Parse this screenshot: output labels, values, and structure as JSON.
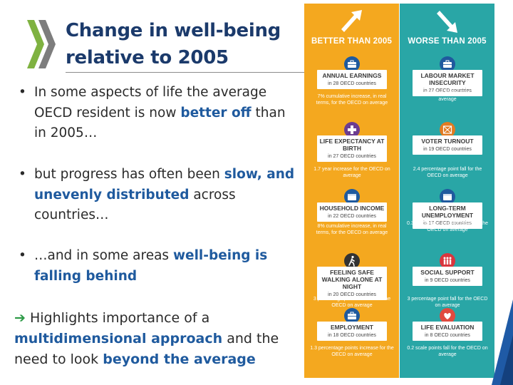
{
  "title": {
    "line1": "Change in well-being",
    "line2": "relative to 2005"
  },
  "bullets": [
    {
      "dot": "•",
      "pre": "In some aspects of life the average OECD resident is now ",
      "hl": "better off",
      "post": " than in 2005…"
    },
    {
      "dot": "•",
      "pre": "but progress has often been ",
      "hl": "slow, and unevenly distributed",
      "post": " across countries…"
    },
    {
      "dot": "•",
      "pre": "…and in some areas ",
      "hl": "well-being is falling behind",
      "post": ""
    }
  ],
  "conclusion": {
    "arrow": "➔",
    "t1": " Highlights importance of a ",
    "h1": "multidimensional approach",
    "t2": " and the need to look ",
    "h2": "beyond the average"
  },
  "infographic": {
    "better": {
      "header": "BETTER THAN 2005",
      "color": "#f4a81f",
      "items": [
        {
          "name": "ANNUAL EARNINGS",
          "countries": "in 28 OECD countries",
          "note": "7% cumulative increase, in real terms, for the OECD on average",
          "icon": "briefcase-icon"
        },
        {
          "name": "LIFE EXPECTANCY AT BIRTH",
          "countries": "in 27 OECD countries",
          "note": "1.7 year increase for the OECD on average",
          "icon": "medical-cross-icon"
        },
        {
          "name": "HOUSEHOLD INCOME",
          "countries": "in 22 OECD countries",
          "note": "8% cumulative increase, in real terms, for the OECD on average",
          "icon": "wallet-icon"
        },
        {
          "name": "FEELING SAFE WALKING ALONE AT NIGHT",
          "countries": "in 20 OECD countries",
          "note": "3 percentage point increase for the OECD on average",
          "icon": "walking-person-icon"
        },
        {
          "name": "EMPLOYMENT",
          "countries": "in 18 OECD countries",
          "note": "1.3 percentage points increase for the OECD on average",
          "icon": "briefcase-icon"
        }
      ]
    },
    "worse": {
      "header": "WORSE THAN 2005",
      "color": "#29a6a6",
      "items": [
        {
          "name": "LABOUR MARKET INSECURITY",
          "countries": "in 27 OECD countries",
          "note": "33% increase for the OECD on average",
          "icon": "briefcase-icon"
        },
        {
          "name": "VOTER TURNOUT",
          "countries": "in 19 OECD countries",
          "note": "2.4 percentage point fall for the OECD on average",
          "icon": "ballot-icon"
        },
        {
          "name": "LONG-TERM UNEMPLOYMENT",
          "countries": "in 17 OECD countries",
          "note": "0.3 percentage point increase for the OECD on average",
          "icon": "wallet-icon"
        },
        {
          "name": "SOCIAL SUPPORT",
          "countries": "in 9 OECD countries",
          "note": "3 percentage point fall for the OECD on average",
          "icon": "people-icon"
        },
        {
          "name": "LIFE EVALUATION",
          "countries": "in 8 OECD countries",
          "note": "0.2 scale points fall for the OECD on average",
          "icon": "heart-icon"
        }
      ]
    }
  }
}
